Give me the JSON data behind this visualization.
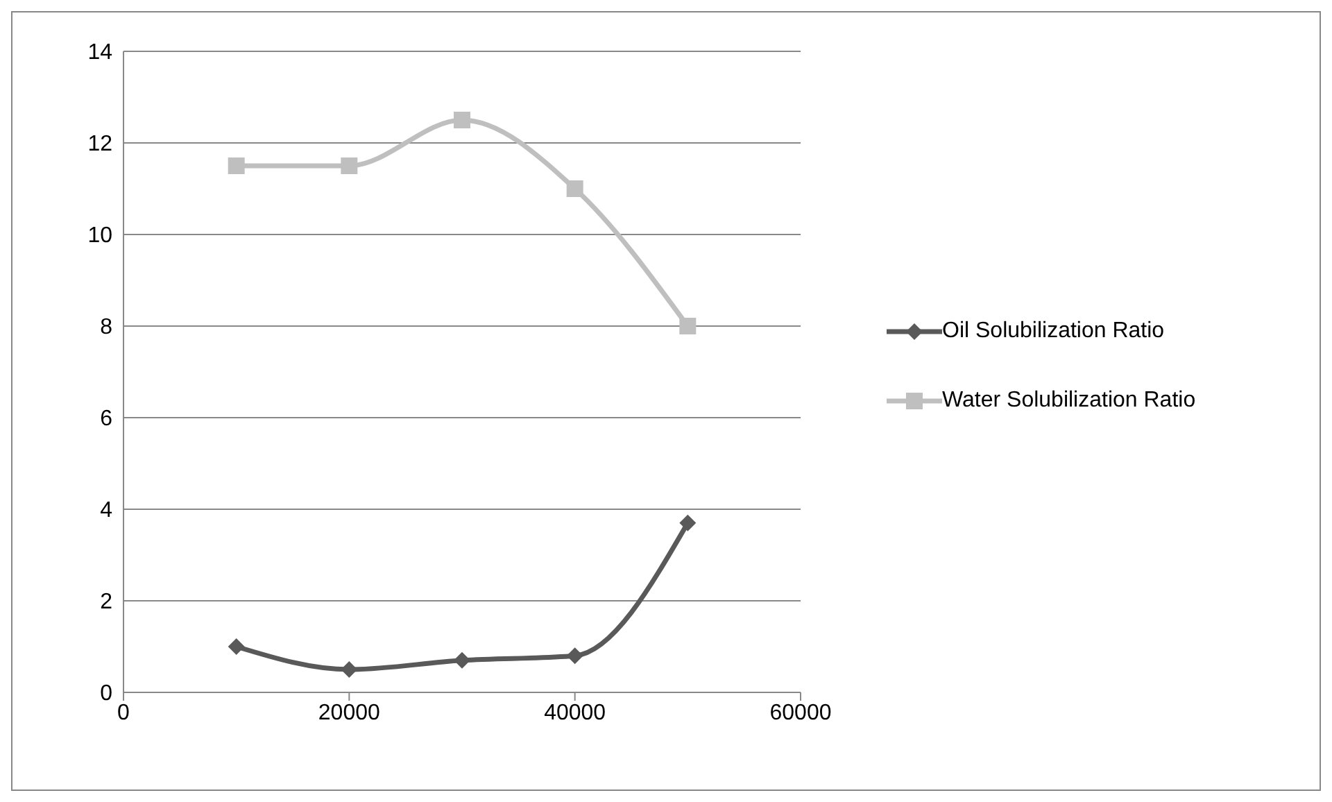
{
  "chart_data": {
    "type": "line",
    "x": [
      10000,
      20000,
      30000,
      40000,
      50000
    ],
    "series": [
      {
        "name": "Oil Solubilization Ratio",
        "color": "#595959",
        "marker": "diamond",
        "values": [
          1.0,
          0.5,
          0.7,
          0.8,
          3.7
        ]
      },
      {
        "name": "Water Solubilization Ratio",
        "color": "#bfbfbf",
        "marker": "square",
        "values": [
          11.5,
          11.5,
          12.5,
          11.0,
          8.0
        ]
      }
    ],
    "xlim": [
      0,
      60000
    ],
    "xticks": [
      0,
      20000,
      40000,
      60000
    ],
    "ylim": [
      0,
      14
    ],
    "yticks": [
      0,
      2,
      4,
      6,
      8,
      10,
      12,
      14
    ],
    "grid": "y",
    "legend": "right",
    "line_style": "solid"
  }
}
